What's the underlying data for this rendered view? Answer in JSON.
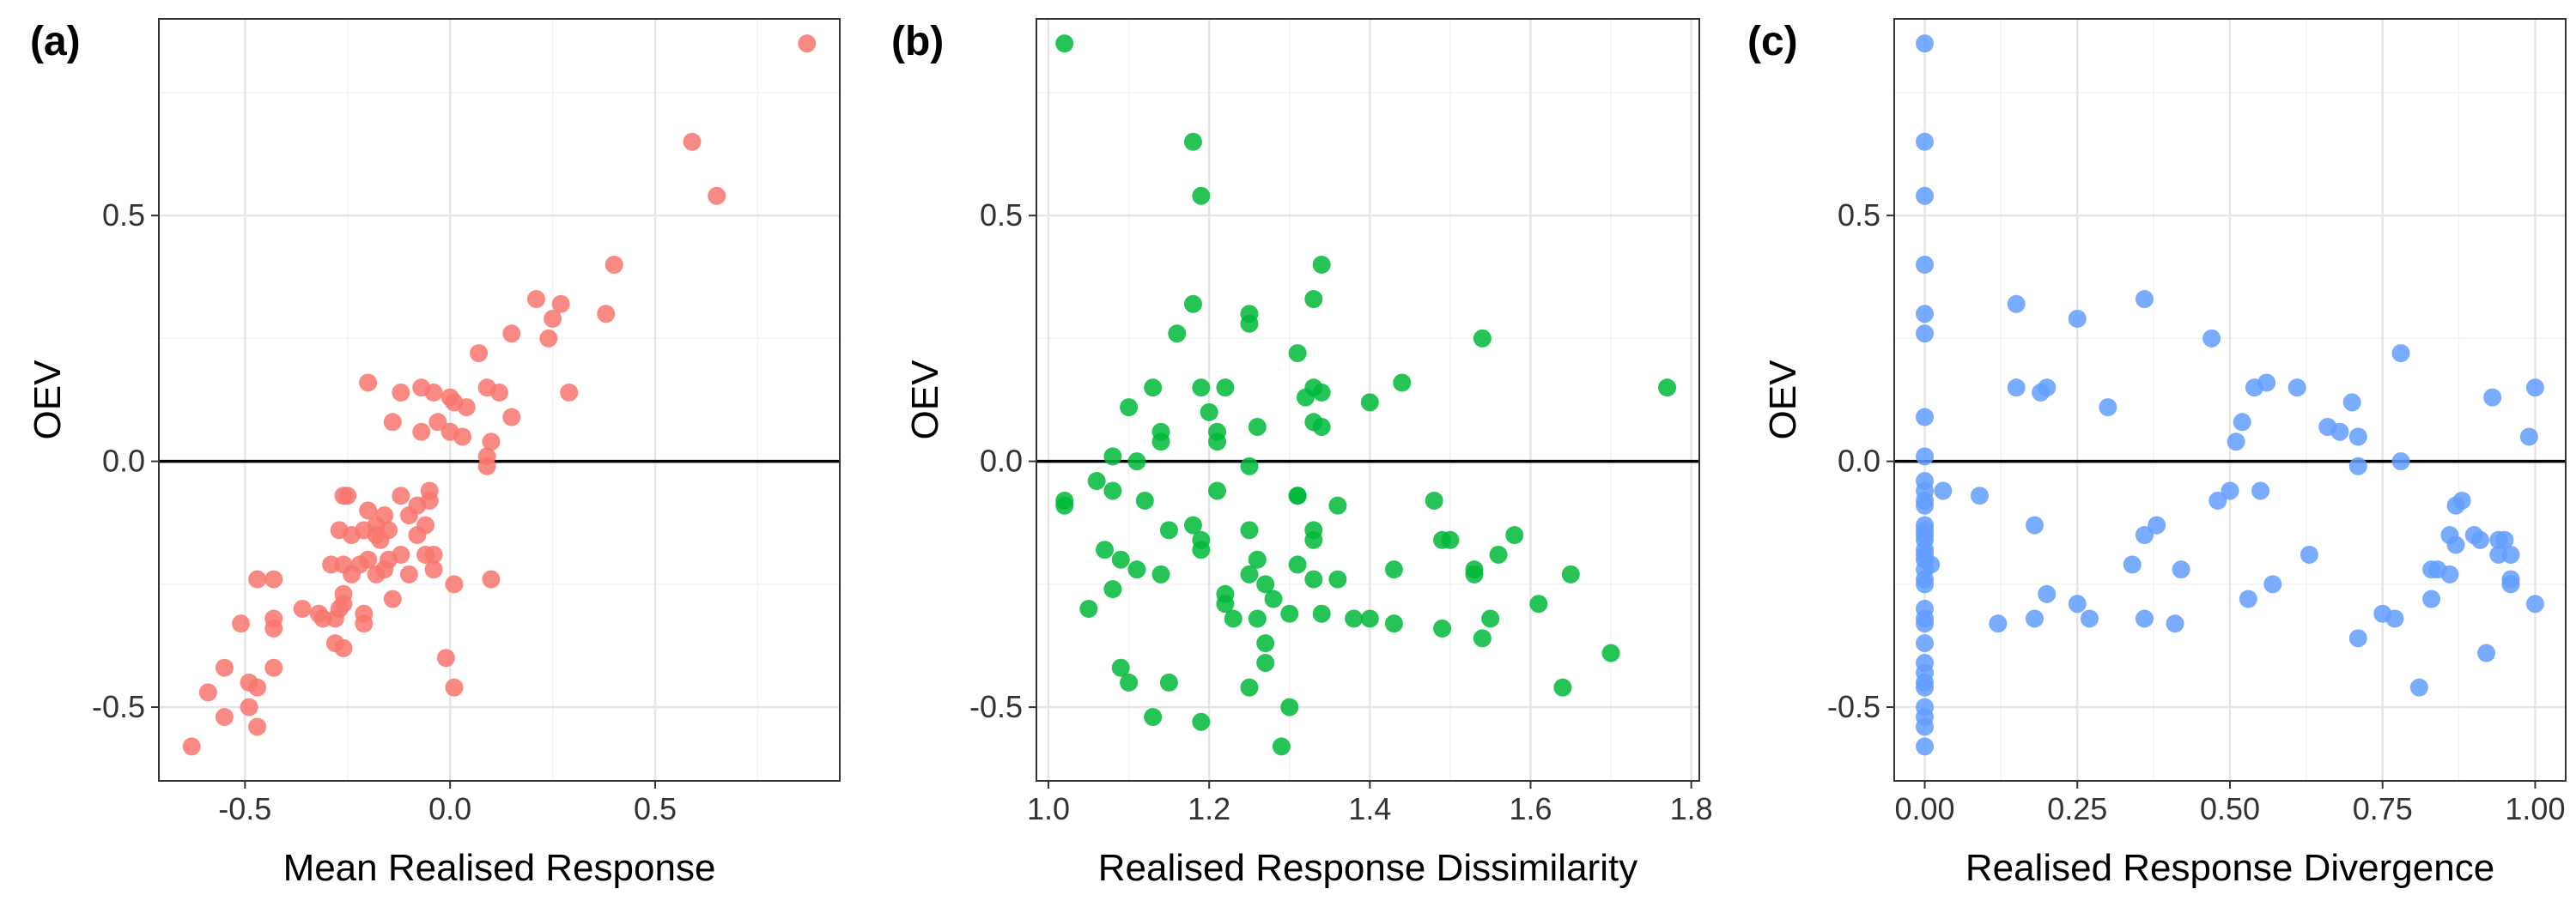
{
  "chart_data": [
    {
      "type": "scatter",
      "panel_label": "(a)",
      "xlabel": "Mean Realised Response",
      "ylabel": "OEV",
      "xlim": [
        -0.71,
        0.95
      ],
      "ylim": [
        -0.65,
        0.9
      ],
      "x_ticks": [
        -0.5,
        0.0,
        0.5
      ],
      "x_tick_labels": [
        "-0.5",
        "0.0",
        "0.5"
      ],
      "y_ticks": [
        -0.5,
        0.0,
        0.5
      ],
      "y_tick_labels": [
        "-0.5",
        "0.0",
        "0.5"
      ],
      "hline": 0,
      "grid": true,
      "color": "#f8766d",
      "points": [
        [
          0.87,
          0.85
        ],
        [
          0.59,
          0.65
        ],
        [
          0.65,
          0.54
        ],
        [
          0.4,
          0.4
        ],
        [
          0.38,
          0.3
        ],
        [
          0.21,
          0.33
        ],
        [
          0.27,
          0.32
        ],
        [
          0.25,
          0.29
        ],
        [
          0.24,
          0.25
        ],
        [
          0.29,
          0.14
        ],
        [
          0.15,
          0.26
        ],
        [
          0.07,
          0.22
        ],
        [
          0.15,
          0.09
        ],
        [
          0.12,
          0.14
        ],
        [
          0.09,
          0.15
        ],
        [
          0.04,
          0.11
        ],
        [
          0.1,
          0.04
        ],
        [
          0.09,
          0.01
        ],
        [
          0.09,
          -0.01
        ],
        [
          0.0,
          0.13
        ],
        [
          0.01,
          0.12
        ],
        [
          0.0,
          0.06
        ],
        [
          0.03,
          0.05
        ],
        [
          -0.03,
          0.08
        ],
        [
          -0.04,
          0.14
        ],
        [
          -0.07,
          0.15
        ],
        [
          -0.07,
          0.06
        ],
        [
          -0.12,
          0.14
        ],
        [
          -0.14,
          0.08
        ],
        [
          -0.2,
          0.16
        ],
        [
          -0.05,
          -0.06
        ],
        [
          -0.05,
          -0.08
        ],
        [
          -0.08,
          -0.09
        ],
        [
          -0.12,
          -0.07
        ],
        [
          -0.15,
          -0.14
        ],
        [
          -0.18,
          -0.13
        ],
        [
          -0.18,
          -0.15
        ],
        [
          -0.21,
          -0.14
        ],
        [
          -0.26,
          -0.07
        ],
        [
          -0.25,
          -0.07
        ],
        [
          -0.2,
          -0.1
        ],
        [
          -0.16,
          -0.11
        ],
        [
          -0.1,
          -0.11
        ],
        [
          -0.06,
          -0.13
        ],
        [
          -0.04,
          -0.19
        ],
        [
          -0.04,
          -0.22
        ],
        [
          -0.08,
          -0.15
        ],
        [
          -0.12,
          -0.19
        ],
        [
          -0.15,
          -0.2
        ],
        [
          -0.17,
          -0.16
        ],
        [
          -0.2,
          -0.2
        ],
        [
          -0.24,
          -0.15
        ],
        [
          -0.27,
          -0.14
        ],
        [
          -0.29,
          -0.21
        ],
        [
          -0.26,
          -0.21
        ],
        [
          -0.24,
          -0.23
        ],
        [
          -0.22,
          -0.21
        ],
        [
          -0.18,
          -0.23
        ],
        [
          -0.16,
          -0.22
        ],
        [
          -0.26,
          -0.29
        ],
        [
          -0.26,
          -0.27
        ],
        [
          -0.27,
          -0.3
        ],
        [
          -0.28,
          -0.32
        ],
        [
          -0.28,
          -0.37
        ],
        [
          -0.26,
          -0.38
        ],
        [
          -0.32,
          -0.31
        ],
        [
          -0.31,
          -0.32
        ],
        [
          -0.21,
          -0.31
        ],
        [
          -0.21,
          -0.33
        ],
        [
          -0.14,
          -0.28
        ],
        [
          -0.36,
          -0.3
        ],
        [
          -0.43,
          -0.24
        ],
        [
          -0.47,
          -0.24
        ],
        [
          -0.43,
          -0.32
        ],
        [
          -0.43,
          -0.34
        ],
        [
          -0.51,
          -0.33
        ],
        [
          -0.43,
          -0.42
        ],
        [
          -0.47,
          -0.46
        ],
        [
          -0.49,
          -0.45
        ],
        [
          -0.55,
          -0.42
        ],
        [
          -0.49,
          -0.5
        ],
        [
          -0.47,
          -0.54
        ],
        [
          -0.55,
          -0.52
        ],
        [
          -0.59,
          -0.47
        ],
        [
          -0.63,
          -0.58
        ],
        [
          0.01,
          -0.25
        ],
        [
          0.1,
          -0.24
        ],
        [
          -0.01,
          -0.4
        ],
        [
          0.01,
          -0.46
        ],
        [
          -0.1,
          -0.23
        ],
        [
          -0.06,
          -0.19
        ]
      ]
    },
    {
      "type": "scatter",
      "panel_label": "(b)",
      "xlabel": "Realised Response Dissimilarity",
      "ylabel": "OEV",
      "xlim": [
        0.985,
        1.81
      ],
      "ylim": [
        -0.65,
        0.9
      ],
      "x_ticks": [
        1.0,
        1.2,
        1.4,
        1.6,
        1.8
      ],
      "x_tick_labels": [
        "1.0",
        "1.2",
        "1.4",
        "1.6",
        "1.8"
      ],
      "y_ticks": [
        -0.5,
        0.0,
        0.5
      ],
      "y_tick_labels": [
        "-0.5",
        "0.0",
        "0.5"
      ],
      "hline": 0,
      "grid": true,
      "color": "#00ba38",
      "points": [
        [
          1.02,
          0.85
        ],
        [
          1.18,
          0.65
        ],
        [
          1.19,
          0.54
        ],
        [
          1.34,
          0.4
        ],
        [
          1.33,
          0.33
        ],
        [
          1.18,
          0.32
        ],
        [
          1.25,
          0.3
        ],
        [
          1.25,
          0.28
        ],
        [
          1.54,
          0.25
        ],
        [
          1.16,
          0.26
        ],
        [
          1.31,
          0.22
        ],
        [
          1.44,
          0.16
        ],
        [
          1.77,
          0.15
        ],
        [
          1.13,
          0.15
        ],
        [
          1.19,
          0.15
        ],
        [
          1.22,
          0.15
        ],
        [
          1.32,
          0.13
        ],
        [
          1.33,
          0.15
        ],
        [
          1.34,
          0.14
        ],
        [
          1.4,
          0.12
        ],
        [
          1.1,
          0.11
        ],
        [
          1.2,
          0.1
        ],
        [
          1.33,
          0.08
        ],
        [
          1.34,
          0.07
        ],
        [
          1.26,
          0.07
        ],
        [
          1.14,
          0.06
        ],
        [
          1.21,
          0.06
        ],
        [
          1.14,
          0.04
        ],
        [
          1.21,
          0.04
        ],
        [
          1.08,
          0.01
        ],
        [
          1.11,
          0.0
        ],
        [
          1.25,
          -0.01
        ],
        [
          1.06,
          -0.04
        ],
        [
          1.08,
          -0.06
        ],
        [
          1.02,
          -0.08
        ],
        [
          1.02,
          -0.09
        ],
        [
          1.21,
          -0.06
        ],
        [
          1.31,
          -0.07
        ],
        [
          1.31,
          -0.07
        ],
        [
          1.36,
          -0.09
        ],
        [
          1.12,
          -0.08
        ],
        [
          1.48,
          -0.08
        ],
        [
          1.07,
          -0.18
        ],
        [
          1.09,
          -0.2
        ],
        [
          1.15,
          -0.14
        ],
        [
          1.18,
          -0.13
        ],
        [
          1.19,
          -0.16
        ],
        [
          1.19,
          -0.18
        ],
        [
          1.25,
          -0.14
        ],
        [
          1.33,
          -0.14
        ],
        [
          1.33,
          -0.16
        ],
        [
          1.49,
          -0.16
        ],
        [
          1.5,
          -0.16
        ],
        [
          1.58,
          -0.15
        ],
        [
          1.11,
          -0.22
        ],
        [
          1.14,
          -0.23
        ],
        [
          1.08,
          -0.26
        ],
        [
          1.05,
          -0.3
        ],
        [
          1.22,
          -0.27
        ],
        [
          1.22,
          -0.29
        ],
        [
          1.25,
          -0.23
        ],
        [
          1.26,
          -0.2
        ],
        [
          1.27,
          -0.25
        ],
        [
          1.28,
          -0.28
        ],
        [
          1.31,
          -0.21
        ],
        [
          1.33,
          -0.24
        ],
        [
          1.36,
          -0.24
        ],
        [
          1.43,
          -0.22
        ],
        [
          1.53,
          -0.22
        ],
        [
          1.53,
          -0.23
        ],
        [
          1.56,
          -0.19
        ],
        [
          1.65,
          -0.23
        ],
        [
          1.23,
          -0.32
        ],
        [
          1.26,
          -0.32
        ],
        [
          1.27,
          -0.37
        ],
        [
          1.3,
          -0.31
        ],
        [
          1.34,
          -0.31
        ],
        [
          1.38,
          -0.32
        ],
        [
          1.4,
          -0.32
        ],
        [
          1.43,
          -0.33
        ],
        [
          1.49,
          -0.34
        ],
        [
          1.54,
          -0.36
        ],
        [
          1.55,
          -0.32
        ],
        [
          1.61,
          -0.29
        ],
        [
          1.7,
          -0.39
        ],
        [
          1.09,
          -0.42
        ],
        [
          1.1,
          -0.45
        ],
        [
          1.15,
          -0.45
        ],
        [
          1.25,
          -0.46
        ],
        [
          1.27,
          -0.41
        ],
        [
          1.3,
          -0.5
        ],
        [
          1.13,
          -0.52
        ],
        [
          1.19,
          -0.53
        ],
        [
          1.29,
          -0.58
        ],
        [
          1.64,
          -0.46
        ]
      ]
    },
    {
      "type": "scatter",
      "panel_label": "(c)",
      "xlabel": "Realised Response Divergence",
      "ylabel": "OEV",
      "xlim": [
        -0.05,
        1.05
      ],
      "ylim": [
        -0.65,
        0.9
      ],
      "x_ticks": [
        0.0,
        0.25,
        0.5,
        0.75,
        1.0
      ],
      "x_tick_labels": [
        "0.00",
        "0.25",
        "0.50",
        "0.75",
        "1.00"
      ],
      "y_ticks": [
        -0.5,
        0.0,
        0.5
      ],
      "y_tick_labels": [
        "-0.5",
        "0.0",
        "0.5"
      ],
      "hline": 0,
      "grid": true,
      "color": "#619cff",
      "points": [
        [
          0.0,
          0.85
        ],
        [
          0.0,
          0.65
        ],
        [
          0.0,
          0.54
        ],
        [
          0.0,
          0.4
        ],
        [
          0.0,
          0.3
        ],
        [
          0.0,
          0.26
        ],
        [
          0.0,
          0.09
        ],
        [
          0.0,
          0.01
        ],
        [
          0.0,
          -0.04
        ],
        [
          0.0,
          -0.06
        ],
        [
          0.0,
          -0.08
        ],
        [
          0.0,
          -0.09
        ],
        [
          0.0,
          -0.13
        ],
        [
          0.0,
          -0.14
        ],
        [
          0.0,
          -0.15
        ],
        [
          0.0,
          -0.16
        ],
        [
          0.0,
          -0.18
        ],
        [
          0.0,
          -0.19
        ],
        [
          0.0,
          -0.2
        ],
        [
          0.0,
          -0.22
        ],
        [
          0.0,
          -0.24
        ],
        [
          0.0,
          -0.25
        ],
        [
          0.0,
          -0.3
        ],
        [
          0.0,
          -0.32
        ],
        [
          0.0,
          -0.33
        ],
        [
          0.0,
          -0.37
        ],
        [
          0.0,
          -0.41
        ],
        [
          0.0,
          -0.43
        ],
        [
          0.0,
          -0.45
        ],
        [
          0.0,
          -0.46
        ],
        [
          0.0,
          -0.5
        ],
        [
          0.0,
          -0.52
        ],
        [
          0.0,
          -0.54
        ],
        [
          0.0,
          -0.58
        ],
        [
          0.01,
          -0.21
        ],
        [
          0.03,
          -0.06
        ],
        [
          0.09,
          -0.07
        ],
        [
          0.12,
          -0.33
        ],
        [
          0.15,
          0.32
        ],
        [
          0.15,
          0.15
        ],
        [
          0.18,
          -0.13
        ],
        [
          0.18,
          -0.32
        ],
        [
          0.19,
          0.14
        ],
        [
          0.2,
          0.15
        ],
        [
          0.2,
          -0.27
        ],
        [
          0.25,
          0.29
        ],
        [
          0.25,
          -0.29
        ],
        [
          0.27,
          -0.32
        ],
        [
          0.3,
          0.11
        ],
        [
          0.34,
          -0.21
        ],
        [
          0.36,
          0.33
        ],
        [
          0.36,
          -0.15
        ],
        [
          0.36,
          -0.32
        ],
        [
          0.38,
          -0.13
        ],
        [
          0.41,
          -0.33
        ],
        [
          0.42,
          -0.22
        ],
        [
          0.47,
          0.25
        ],
        [
          0.48,
          -0.08
        ],
        [
          0.5,
          -0.06
        ],
        [
          0.51,
          0.04
        ],
        [
          0.52,
          0.08
        ],
        [
          0.54,
          0.15
        ],
        [
          0.53,
          -0.28
        ],
        [
          0.55,
          -0.06
        ],
        [
          0.56,
          0.16
        ],
        [
          0.57,
          -0.25
        ],
        [
          0.61,
          0.15
        ],
        [
          0.63,
          -0.19
        ],
        [
          0.66,
          0.07
        ],
        [
          0.68,
          0.06
        ],
        [
          0.7,
          0.12
        ],
        [
          0.71,
          0.05
        ],
        [
          0.71,
          -0.01
        ],
        [
          0.71,
          -0.36
        ],
        [
          0.75,
          -0.31
        ],
        [
          0.77,
          -0.32
        ],
        [
          0.78,
          0.0
        ],
        [
          0.78,
          0.22
        ],
        [
          0.81,
          -0.46
        ],
        [
          0.83,
          -0.28
        ],
        [
          0.83,
          -0.22
        ],
        [
          0.84,
          -0.22
        ],
        [
          0.86,
          -0.23
        ],
        [
          0.86,
          -0.15
        ],
        [
          0.87,
          -0.17
        ],
        [
          0.87,
          -0.09
        ],
        [
          0.88,
          -0.08
        ],
        [
          0.9,
          -0.15
        ],
        [
          0.91,
          -0.16
        ],
        [
          0.92,
          -0.39
        ],
        [
          0.93,
          0.13
        ],
        [
          0.94,
          -0.16
        ],
        [
          0.94,
          -0.19
        ],
        [
          0.95,
          -0.16
        ],
        [
          0.96,
          -0.24
        ],
        [
          0.96,
          -0.25
        ],
        [
          0.96,
          -0.19
        ],
        [
          0.99,
          0.05
        ],
        [
          1.0,
          0.15
        ],
        [
          1.0,
          -0.29
        ]
      ]
    }
  ]
}
